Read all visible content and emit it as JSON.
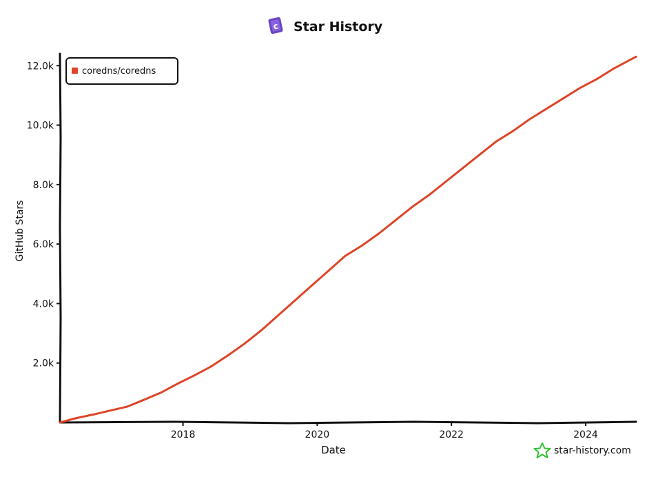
{
  "header": {
    "title": "Star History"
  },
  "watermark": {
    "text": "star-history.com",
    "icon": "star-outline-icon",
    "color": "#2fc22f"
  },
  "logo": {
    "icon": "star-history-logo-icon",
    "color": "#6b46c1"
  },
  "chart_data": {
    "type": "line",
    "title": "Star History",
    "xlabel": "Date",
    "ylabel": "GitHub Stars",
    "x_tick_labels": [
      "2018",
      "2020",
      "2022",
      "2024"
    ],
    "y_tick_labels": [
      "2.0k",
      "4.0k",
      "6.0k",
      "8.0k",
      "10.0k",
      "12.0k"
    ],
    "xlim": [
      "2016-03",
      "2024-10"
    ],
    "ylim": [
      0,
      12400
    ],
    "grid": false,
    "legend_position": "top-left",
    "series": [
      {
        "name": "coredns/coredns",
        "color": "#dd4528",
        "x": [
          "2016-03",
          "2016-06",
          "2016-09",
          "2016-12",
          "2017-03",
          "2017-06",
          "2017-09",
          "2017-12",
          "2018-03",
          "2018-06",
          "2018-09",
          "2018-12",
          "2019-03",
          "2019-06",
          "2019-09",
          "2019-12",
          "2020-03",
          "2020-06",
          "2020-09",
          "2020-12",
          "2021-03",
          "2021-06",
          "2021-09",
          "2021-12",
          "2022-03",
          "2022-06",
          "2022-09",
          "2022-12",
          "2023-03",
          "2023-06",
          "2023-09",
          "2023-12",
          "2024-03",
          "2024-06",
          "2024-10"
        ],
        "values": [
          0,
          150,
          270,
          400,
          530,
          760,
          1000,
          1300,
          1580,
          1880,
          2250,
          2650,
          3100,
          3600,
          4100,
          4600,
          5100,
          5600,
          5950,
          6350,
          6800,
          7250,
          7650,
          8100,
          8550,
          9000,
          9450,
          9800,
          10200,
          10550,
          10900,
          11250,
          11550,
          11900,
          12300
        ]
      }
    ]
  }
}
